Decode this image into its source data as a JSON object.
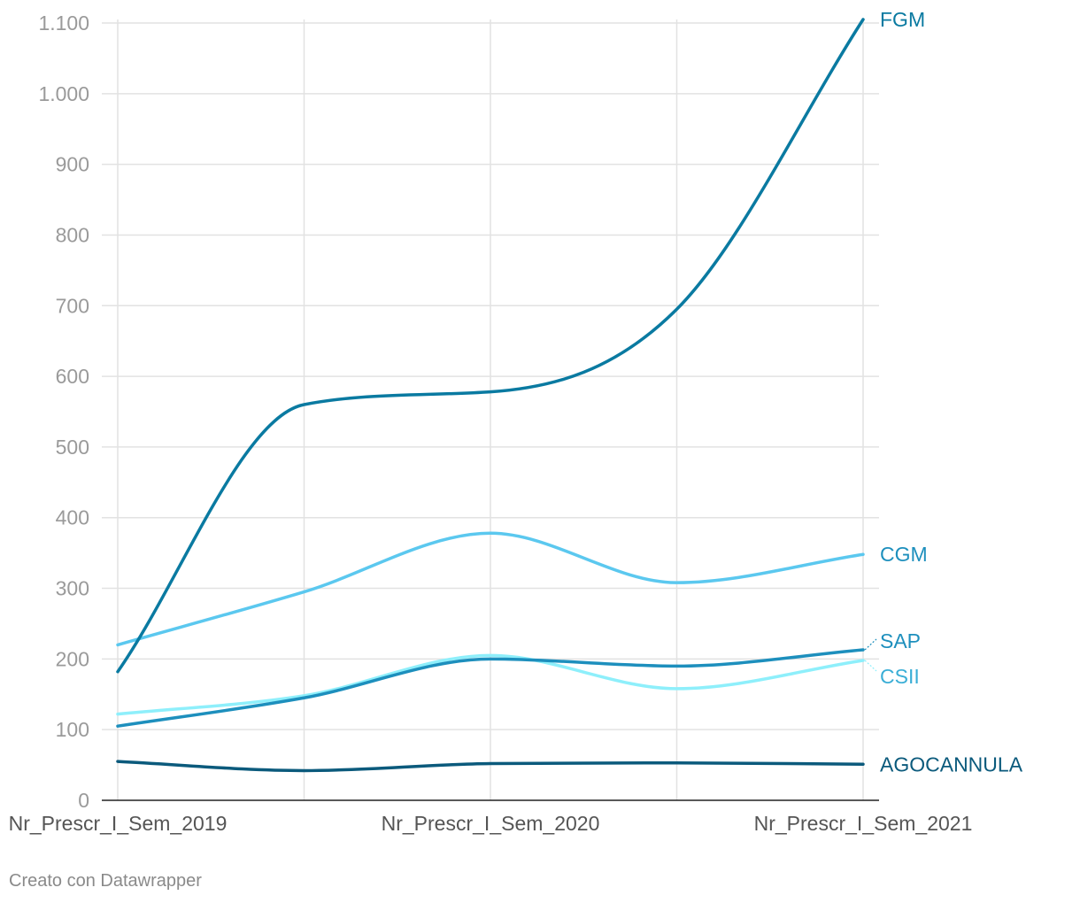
{
  "chart_data": {
    "type": "line",
    "title": "",
    "xlabel": "",
    "ylabel": "",
    "x_tick_labels": [
      "Nr_Prescr_I_Sem_2019",
      "Nr_Prescr_I_Sem_2020",
      "Nr_Prescr_I_Sem_2021"
    ],
    "y_ticks": [
      0,
      100,
      200,
      300,
      400,
      500,
      600,
      700,
      800,
      900,
      1000,
      1100
    ],
    "y_tick_labels": [
      "0",
      "100",
      "200",
      "300",
      "400",
      "500",
      "600",
      "700",
      "800",
      "900",
      "1.000",
      "1.100"
    ],
    "ylim": [
      0,
      1100
    ],
    "grid": true,
    "legend": "direct labels at line ends (right)",
    "series": [
      {
        "name": "FGM",
        "color": "#0a7aa1",
        "values": [
          182,
          560,
          578,
          695,
          1105
        ]
      },
      {
        "name": "CGM",
        "color": "#5bc8ef",
        "values": [
          220,
          295,
          378,
          308,
          348
        ]
      },
      {
        "name": "SAP",
        "color": "#1d8fbd",
        "values": [
          105,
          145,
          200,
          190,
          213
        ]
      },
      {
        "name": "CSII",
        "color": "#8eeffb",
        "values": [
          122,
          148,
          205,
          158,
          198
        ]
      },
      {
        "name": "AGOCANNULA",
        "color": "#0b5a7c",
        "values": [
          55,
          42,
          52,
          53,
          51
        ]
      }
    ]
  },
  "footer": {
    "credit": "Creato con Datawrapper"
  }
}
